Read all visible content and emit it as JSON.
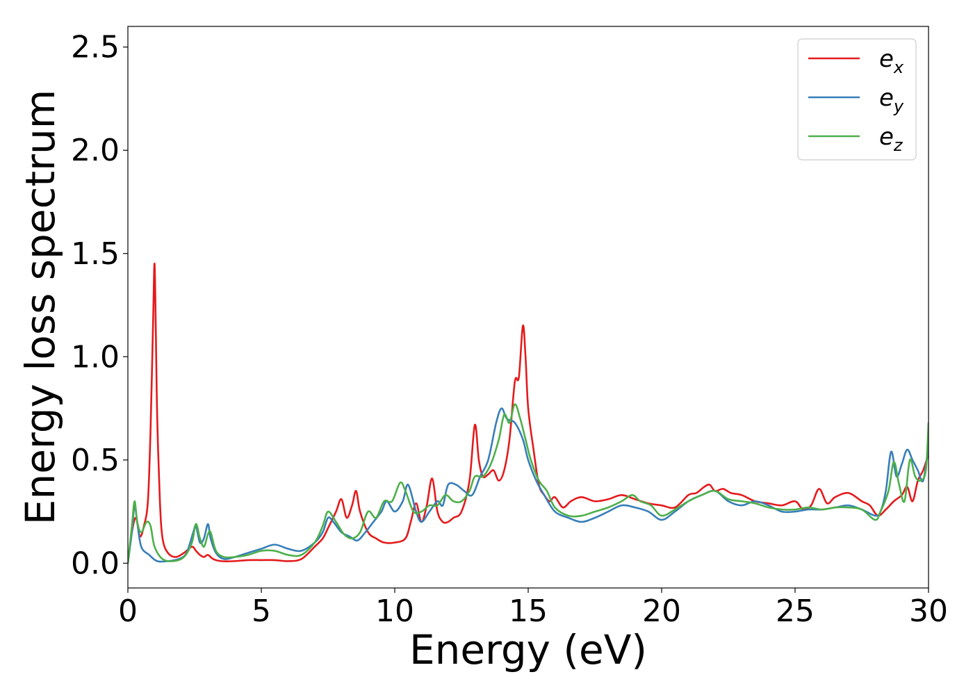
{
  "chart_data": {
    "type": "line",
    "xlabel": "Energy (eV)",
    "ylabel": "Energy loss spectrum",
    "xlim": [
      0,
      30
    ],
    "ylim": [
      -0.12,
      2.6
    ],
    "xticks": [
      "0",
      "5",
      "10",
      "15",
      "20",
      "25",
      "30"
    ],
    "yticks": [
      "0.0",
      "0.5",
      "1.0",
      "1.5",
      "2.0",
      "2.5"
    ],
    "grid": false,
    "legend_position": "top-right",
    "series": [
      {
        "name": "e",
        "subscript": "x",
        "color": "#e41a1c",
        "x": [
          0,
          0.15,
          0.3,
          0.45,
          0.6,
          0.75,
          0.85,
          0.95,
          1.0,
          1.05,
          1.1,
          1.2,
          1.3,
          1.5,
          1.8,
          2.1,
          2.4,
          2.55,
          2.7,
          2.85,
          3.0,
          3.2,
          3.5,
          4.0,
          4.5,
          5.0,
          5.5,
          6.0,
          6.5,
          7.0,
          7.3,
          7.5,
          7.8,
          8.0,
          8.2,
          8.4,
          8.55,
          8.7,
          9.0,
          9.3,
          9.6,
          10.0,
          10.4,
          10.6,
          10.8,
          11.0,
          11.2,
          11.4,
          11.6,
          11.8,
          12.0,
          12.2,
          12.5,
          12.8,
          13.0,
          13.15,
          13.3,
          13.5,
          13.7,
          13.9,
          14.1,
          14.3,
          14.5,
          14.65,
          14.8,
          14.9,
          15.0,
          15.2,
          15.4,
          15.6,
          15.8,
          16.0,
          16.3,
          16.6,
          17.0,
          17.5,
          18.0,
          18.5,
          19.0,
          19.5,
          20.0,
          20.5,
          21.0,
          21.3,
          21.6,
          21.8,
          22.0,
          22.3,
          22.6,
          23.0,
          23.5,
          24.0,
          24.5,
          25.0,
          25.3,
          25.6,
          25.9,
          26.2,
          26.5,
          27.0,
          27.5,
          27.8,
          28.1,
          28.4,
          28.7,
          29.0,
          29.2,
          29.4,
          29.6,
          29.8,
          30.0
        ],
        "y": [
          0.0,
          0.15,
          0.22,
          0.13,
          0.18,
          0.3,
          0.65,
          1.2,
          1.45,
          1.1,
          0.7,
          0.3,
          0.12,
          0.05,
          0.03,
          0.05,
          0.08,
          0.06,
          0.04,
          0.03,
          0.04,
          0.02,
          0.01,
          0.01,
          0.015,
          0.015,
          0.015,
          0.01,
          0.02,
          0.08,
          0.12,
          0.17,
          0.25,
          0.31,
          0.22,
          0.28,
          0.35,
          0.25,
          0.15,
          0.12,
          0.1,
          0.1,
          0.12,
          0.2,
          0.29,
          0.2,
          0.28,
          0.41,
          0.25,
          0.2,
          0.2,
          0.22,
          0.25,
          0.4,
          0.67,
          0.5,
          0.42,
          0.43,
          0.45,
          0.4,
          0.45,
          0.6,
          0.88,
          0.9,
          1.15,
          1.0,
          0.75,
          0.55,
          0.38,
          0.33,
          0.3,
          0.32,
          0.27,
          0.3,
          0.32,
          0.3,
          0.31,
          0.33,
          0.31,
          0.29,
          0.28,
          0.27,
          0.33,
          0.34,
          0.37,
          0.38,
          0.35,
          0.36,
          0.34,
          0.33,
          0.3,
          0.29,
          0.28,
          0.3,
          0.26,
          0.28,
          0.36,
          0.29,
          0.32,
          0.34,
          0.3,
          0.28,
          0.23,
          0.26,
          0.3,
          0.33,
          0.37,
          0.3,
          0.4,
          0.45,
          0.53
        ]
      },
      {
        "name": "e",
        "subscript": "y",
        "color": "#377eb8",
        "x": [
          0,
          0.15,
          0.25,
          0.35,
          0.5,
          0.8,
          1.1,
          1.5,
          1.9,
          2.2,
          2.45,
          2.55,
          2.7,
          2.85,
          3.0,
          3.1,
          3.3,
          3.6,
          4.0,
          4.5,
          5.0,
          5.5,
          6.0,
          6.5,
          7.0,
          7.3,
          7.5,
          7.7,
          8.0,
          8.3,
          8.6,
          8.9,
          9.2,
          9.5,
          9.7,
          10.0,
          10.3,
          10.5,
          10.8,
          11.0,
          11.3,
          11.6,
          11.8,
          12.0,
          12.3,
          12.6,
          12.9,
          13.2,
          13.5,
          13.8,
          14.0,
          14.2,
          14.5,
          14.8,
          15.0,
          15.3,
          15.6,
          16.0,
          16.5,
          17.0,
          17.5,
          18.0,
          18.5,
          19.0,
          19.5,
          20.0,
          20.5,
          21.0,
          21.5,
          22.0,
          22.5,
          23.0,
          23.5,
          24.0,
          24.5,
          25.0,
          25.5,
          26.0,
          26.5,
          27.0,
          27.5,
          28.0,
          28.2,
          28.4,
          28.6,
          28.8,
          29.0,
          29.2,
          29.4,
          29.6,
          29.8,
          30.0
        ],
        "y": [
          0.0,
          0.15,
          0.28,
          0.2,
          0.08,
          0.04,
          0.01,
          0.01,
          0.02,
          0.05,
          0.15,
          0.18,
          0.1,
          0.12,
          0.19,
          0.12,
          0.05,
          0.02,
          0.03,
          0.05,
          0.07,
          0.09,
          0.07,
          0.06,
          0.1,
          0.15,
          0.22,
          0.2,
          0.15,
          0.13,
          0.11,
          0.15,
          0.2,
          0.25,
          0.3,
          0.25,
          0.3,
          0.38,
          0.25,
          0.2,
          0.25,
          0.3,
          0.28,
          0.38,
          0.38,
          0.35,
          0.33,
          0.42,
          0.5,
          0.68,
          0.75,
          0.7,
          0.68,
          0.6,
          0.5,
          0.4,
          0.33,
          0.25,
          0.22,
          0.2,
          0.22,
          0.25,
          0.28,
          0.27,
          0.25,
          0.21,
          0.25,
          0.3,
          0.33,
          0.35,
          0.3,
          0.28,
          0.3,
          0.28,
          0.25,
          0.25,
          0.26,
          0.26,
          0.27,
          0.28,
          0.26,
          0.23,
          0.25,
          0.35,
          0.54,
          0.42,
          0.48,
          0.55,
          0.5,
          0.45,
          0.4,
          0.57
        ]
      },
      {
        "name": "e",
        "subscript": "z",
        "color": "#4daf4a",
        "x": [
          0,
          0.15,
          0.25,
          0.35,
          0.5,
          0.7,
          0.85,
          1.0,
          1.3,
          1.7,
          2.1,
          2.4,
          2.55,
          2.7,
          2.85,
          3.0,
          3.1,
          3.3,
          3.6,
          4.0,
          4.5,
          5.0,
          5.5,
          6.0,
          6.5,
          7.0,
          7.3,
          7.5,
          7.8,
          8.1,
          8.4,
          8.7,
          9.0,
          9.3,
          9.6,
          9.9,
          10.2,
          10.4,
          10.7,
          11.0,
          11.3,
          11.6,
          11.9,
          12.2,
          12.5,
          12.8,
          13.0,
          13.3,
          13.6,
          13.9,
          14.1,
          14.3,
          14.5,
          14.7,
          14.9,
          15.1,
          15.4,
          15.7,
          16.0,
          16.5,
          17.0,
          17.5,
          18.0,
          18.5,
          18.9,
          19.2,
          19.6,
          20.0,
          20.5,
          21.0,
          21.5,
          22.0,
          22.5,
          23.0,
          23.5,
          24.0,
          24.5,
          25.0,
          25.5,
          26.0,
          26.5,
          27.0,
          27.5,
          28.0,
          28.2,
          28.5,
          28.7,
          28.9,
          29.1,
          29.3,
          29.5,
          29.7,
          29.9,
          30.0
        ],
        "y": [
          0.0,
          0.18,
          0.3,
          0.2,
          0.15,
          0.2,
          0.18,
          0.08,
          0.02,
          0.01,
          0.03,
          0.1,
          0.19,
          0.12,
          0.08,
          0.14,
          0.15,
          0.06,
          0.03,
          0.03,
          0.04,
          0.06,
          0.06,
          0.04,
          0.04,
          0.1,
          0.18,
          0.25,
          0.2,
          0.14,
          0.12,
          0.15,
          0.25,
          0.22,
          0.3,
          0.3,
          0.39,
          0.35,
          0.25,
          0.25,
          0.28,
          0.28,
          0.33,
          0.3,
          0.3,
          0.35,
          0.42,
          0.42,
          0.48,
          0.6,
          0.72,
          0.68,
          0.77,
          0.7,
          0.6,
          0.5,
          0.4,
          0.35,
          0.27,
          0.23,
          0.23,
          0.25,
          0.27,
          0.3,
          0.33,
          0.3,
          0.28,
          0.23,
          0.26,
          0.3,
          0.33,
          0.35,
          0.31,
          0.3,
          0.29,
          0.27,
          0.26,
          0.26,
          0.27,
          0.26,
          0.27,
          0.27,
          0.26,
          0.21,
          0.25,
          0.35,
          0.49,
          0.38,
          0.3,
          0.5,
          0.42,
          0.4,
          0.45,
          0.68
        ]
      }
    ]
  }
}
